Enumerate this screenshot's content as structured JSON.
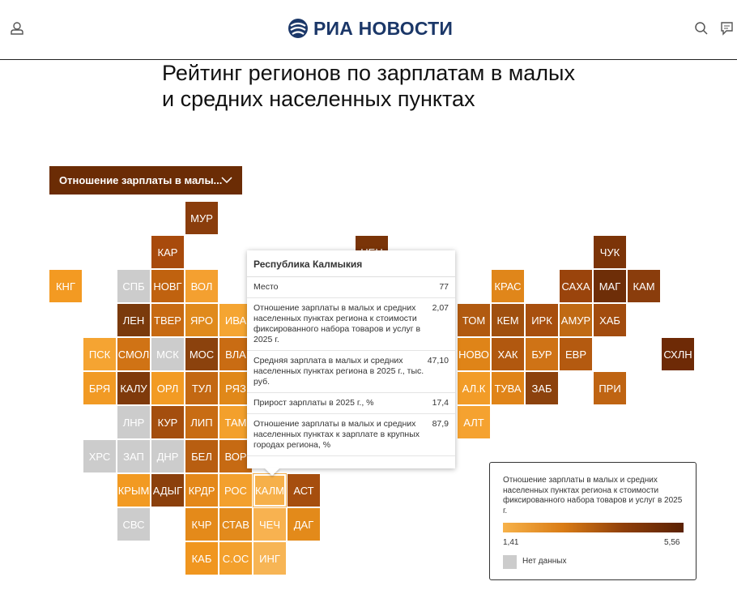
{
  "header": {
    "logo": "РИА НОВОСТИ"
  },
  "title": "Рейтинг регионов по зарплатам в малых и средних населенных пунктах",
  "dropdown": {
    "label": "Отношение зарплаты в малы..."
  },
  "tiles": [
    {
      "label": "МУР",
      "color": "#8a3d0c"
    },
    {
      "label": "КАР",
      "color": "#a84a0c"
    },
    {
      "label": "НЕН",
      "color": "#7a3408"
    },
    {
      "label": "ЧУК",
      "color": "#7c3408"
    },
    {
      "label": "КНГ",
      "color": "#f39a22"
    },
    {
      "label": "СПБ",
      "color": "#cccccc"
    },
    {
      "label": "НОВГ",
      "color": "#c0620f"
    },
    {
      "label": "ВОЛ",
      "color": "#f4a030"
    },
    {
      "label": "КРАС",
      "color": "#e0861a"
    },
    {
      "label": "САХА",
      "color": "#9a440c"
    },
    {
      "label": "МАГ",
      "color": "#6e2e08"
    },
    {
      "label": "КАМ",
      "color": "#8a3d0c"
    },
    {
      "label": "ЛЕН",
      "color": "#7a3a0c"
    },
    {
      "label": "ТВЕР",
      "color": "#c76a12"
    },
    {
      "label": "ЯРО",
      "color": "#e08a1c"
    },
    {
      "label": "ИВА",
      "color": "#f5a532"
    },
    {
      "label": "ТОМ",
      "color": "#b15a10"
    },
    {
      "label": "КЕМ",
      "color": "#a0500f"
    },
    {
      "label": "ИРК",
      "color": "#a84f0e"
    },
    {
      "label": "АМУР",
      "color": "#c06a14"
    },
    {
      "label": "ХАБ",
      "color": "#a24c0e"
    },
    {
      "label": "ПСК",
      "color": "#f5a432"
    },
    {
      "label": "СМОЛ",
      "color": "#d07315"
    },
    {
      "label": "МСК",
      "color": "#cccccc"
    },
    {
      "label": "МОС",
      "color": "#8b420d"
    },
    {
      "label": "ВЛА",
      "color": "#c96c13"
    },
    {
      "label": "НОВО",
      "color": "#df8418"
    },
    {
      "label": "ХАК",
      "color": "#b1580f"
    },
    {
      "label": "БУР",
      "color": "#cf7316"
    },
    {
      "label": "ЕВР",
      "color": "#b45a10"
    },
    {
      "label": "СХЛН",
      "color": "#6e2a06"
    },
    {
      "label": "БРЯ",
      "color": "#f19a24"
    },
    {
      "label": "КАЛУ",
      "color": "#7f3a0b"
    },
    {
      "label": "ОРЛ",
      "color": "#f29b24"
    },
    {
      "label": "ТУЛ",
      "color": "#c36812"
    },
    {
      "label": "РЯЗ",
      "color": "#e08819"
    },
    {
      "label": "АЛ.К",
      "color": "#f29c28"
    },
    {
      "label": "ТУВА",
      "color": "#e08418"
    },
    {
      "label": "ЗАБ",
      "color": "#8c420d"
    },
    {
      "label": "ПРИ",
      "color": "#bf6412"
    },
    {
      "label": "ЛНР",
      "color": "#cccccc"
    },
    {
      "label": "КУР",
      "color": "#a44e0e"
    },
    {
      "label": "ЛИП",
      "color": "#c86c13"
    },
    {
      "label": "ТАМ",
      "color": "#f3a02c"
    },
    {
      "label": "АЛТ",
      "color": "#f5a230"
    },
    {
      "label": "ХРС",
      "color": "#cccccc"
    },
    {
      "label": "ЗАП",
      "color": "#cccccc"
    },
    {
      "label": "ДНР",
      "color": "#cccccc"
    },
    {
      "label": "БЕЛ",
      "color": "#b85e11"
    },
    {
      "label": "ВОР",
      "color": "#c66a13"
    },
    {
      "label": "КРЫМ",
      "color": "#f29a22"
    },
    {
      "label": "АДЫГ",
      "color": "#8b400c"
    },
    {
      "label": "КРДР",
      "color": "#e4881a"
    },
    {
      "label": "РОС",
      "color": "#f3a02d"
    },
    {
      "label": "КАЛМ",
      "color": "#f6b04a"
    },
    {
      "label": "АСТ",
      "color": "#a64e0e"
    },
    {
      "label": "СВС",
      "color": "#cccccc"
    },
    {
      "label": "КЧР",
      "color": "#e48a1a"
    },
    {
      "label": "СТАВ",
      "color": "#e28a1c"
    },
    {
      "label": "ЧЕЧ",
      "color": "#f8b250"
    },
    {
      "label": "ДАГ",
      "color": "#e38a1a"
    },
    {
      "label": "КАБ",
      "color": "#f0961f"
    },
    {
      "label": "С.ОС",
      "color": "#f3a02c"
    },
    {
      "label": "ИНГ",
      "color": "#f7b555"
    }
  ],
  "tooltip": {
    "title": "Республика Калмыкия",
    "rows": [
      {
        "label": "Место",
        "value": "77"
      },
      {
        "label": "Отношение зарплаты в малых и средних населенных пунктах региона к стоимости фиксированного набора товаров и услуг в 2025 г.",
        "value": "2,07"
      },
      {
        "label": "Средняя зарплата в малых и средних населенных пунктах региона в 2025 г., тыс. руб.",
        "value": "47,10"
      },
      {
        "label": "Прирост зарплаты в 2025 г., %",
        "value": "17,4"
      },
      {
        "label": "Отношение зарплаты в малых и средних населенных пунктах к зарплате в крупных городах региона, %",
        "value": "87,9"
      }
    ]
  },
  "legend": {
    "title": "Отношение зарплаты в малых и средних населенных пунктах региона к стоимости фиксированного набора товаров и услуг в 2025 г.",
    "min": "1,41",
    "max": "5,56",
    "no_data": "Нет данных"
  }
}
